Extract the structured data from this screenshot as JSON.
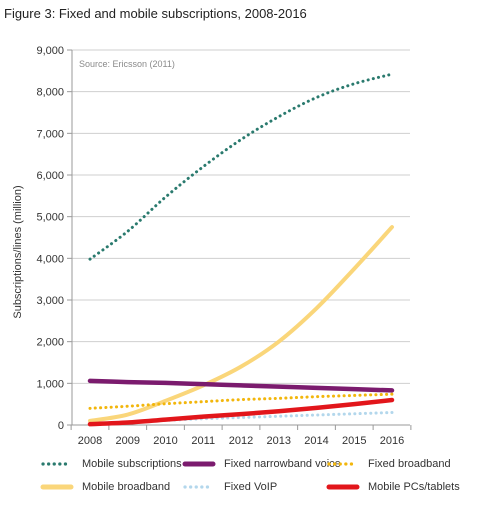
{
  "title": "Figure 3: Fixed and mobile subscriptions, 2008-2016",
  "chart_data": {
    "type": "line",
    "title": "Figure 3: Fixed and mobile subscriptions, 2008-2016",
    "annotation": "Source: Ericsson (2011)",
    "xlabel": "",
    "ylabel": "Subscriptions/lines (million)",
    "x": [
      2008,
      2009,
      2010,
      2011,
      2012,
      2013,
      2014,
      2015,
      2016
    ],
    "ylim": [
      0,
      9000
    ],
    "yticks": [
      "0",
      "1,000",
      "2,000",
      "3,000",
      "4,000",
      "5,000",
      "6,000",
      "7,000",
      "8,000",
      "9,000"
    ],
    "ytick_values": [
      0,
      1000,
      2000,
      3000,
      4000,
      5000,
      6000,
      7000,
      8000,
      9000
    ],
    "grid": true,
    "legend_position": "bottom",
    "series": [
      {
        "name": "Mobile subscriptions",
        "color": "#2a7a6e",
        "style": "dotted",
        "values": [
          3980,
          4650,
          5470,
          6200,
          6850,
          7400,
          7860,
          8190,
          8420
        ]
      },
      {
        "name": "Fixed narrowband voice",
        "color": "#7b1b6e",
        "style": "solid",
        "values": [
          1060,
          1030,
          1010,
          980,
          950,
          920,
          890,
          860,
          830
        ]
      },
      {
        "name": "Fixed broadband",
        "color": "#f2b60c",
        "style": "dotted",
        "values": [
          400,
          450,
          510,
          560,
          610,
          640,
          680,
          710,
          740
        ]
      },
      {
        "name": "Mobile broadband",
        "color": "#fad67a",
        "style": "solid",
        "values": [
          100,
          250,
          580,
          950,
          1400,
          2000,
          2800,
          3750,
          4750
        ]
      },
      {
        "name": "Fixed VoIP",
        "color": "#b3d7ec",
        "style": "dotted",
        "values": [
          30,
          70,
          110,
          150,
          180,
          210,
          240,
          270,
          300
        ]
      },
      {
        "name": "Mobile PCs/tablets",
        "color": "#e2161b",
        "style": "solid",
        "values": [
          20,
          60,
          130,
          200,
          260,
          330,
          410,
          500,
          600
        ]
      }
    ]
  }
}
